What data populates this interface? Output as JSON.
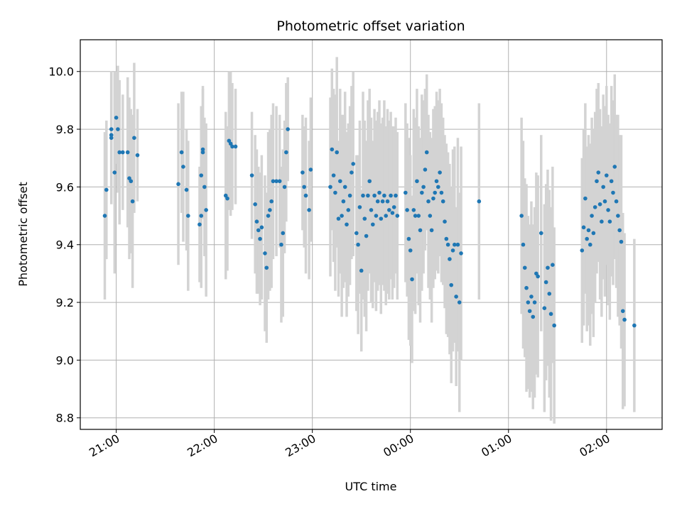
{
  "chart_data": {
    "type": "scatter",
    "title": "Photometric offset variation",
    "xlabel": "UTC time",
    "ylabel": "Photometric offset",
    "xlim": [
      "20:38",
      "26:34"
    ],
    "ylim": [
      8.76,
      10.11
    ],
    "x_ticks": [
      "21:00",
      "22:00",
      "23:00",
      "00:00",
      "01:00",
      "02:00"
    ],
    "y_ticks": [
      "8.8",
      "9.0",
      "9.2",
      "9.4",
      "9.6",
      "9.8",
      "10.0"
    ],
    "grid": true,
    "colors": {
      "points": "#1f77b4",
      "error_bars": "#d3d3d3",
      "grid": "#b0b0b0"
    },
    "series": [
      {
        "error_bars": "sd",
        "points": [
          {
            "x": "20:53",
            "y": 9.5,
            "err": 0.29
          },
          {
            "x": "20:54",
            "y": 9.59,
            "err": 0.24
          },
          {
            "x": "20:57",
            "y": 9.8,
            "err": 0.2
          },
          {
            "x": "20:57",
            "y": 9.78,
            "err": 0.22
          },
          {
            "x": "20:57",
            "y": 9.77,
            "err": 0.23
          },
          {
            "x": "20:59",
            "y": 9.65,
            "err": 0.35
          },
          {
            "x": "21:00",
            "y": 9.84,
            "err": 0.16
          },
          {
            "x": "21:01",
            "y": 9.8,
            "err": 0.22
          },
          {
            "x": "21:02",
            "y": 9.72,
            "err": 0.25
          },
          {
            "x": "21:04",
            "y": 9.72,
            "err": 0.2
          },
          {
            "x": "21:07",
            "y": 9.72,
            "err": 0.26
          },
          {
            "x": "21:08",
            "y": 9.63,
            "err": 0.28
          },
          {
            "x": "21:09",
            "y": 9.62,
            "err": 0.25
          },
          {
            "x": "21:10",
            "y": 9.55,
            "err": 0.3
          },
          {
            "x": "21:11",
            "y": 9.77,
            "err": 0.26
          },
          {
            "x": "21:13",
            "y": 9.71,
            "err": 0.16
          },
          {
            "x": "21:38",
            "y": 9.61,
            "err": 0.28
          },
          {
            "x": "21:40",
            "y": 9.72,
            "err": 0.21
          },
          {
            "x": "21:41",
            "y": 9.67,
            "err": 0.26
          },
          {
            "x": "21:43",
            "y": 9.59,
            "err": 0.21
          },
          {
            "x": "21:44",
            "y": 9.5,
            "err": 0.26
          },
          {
            "x": "21:51",
            "y": 9.47,
            "err": 0.2
          },
          {
            "x": "21:52",
            "y": 9.5,
            "err": 0.25
          },
          {
            "x": "21:52",
            "y": 9.64,
            "err": 0.24
          },
          {
            "x": "21:53",
            "y": 9.73,
            "err": 0.21
          },
          {
            "x": "21:53",
            "y": 9.72,
            "err": 0.23
          },
          {
            "x": "21:54",
            "y": 9.6,
            "err": 0.24
          },
          {
            "x": "21:55",
            "y": 9.52,
            "err": 0.3
          },
          {
            "x": "22:07",
            "y": 9.57,
            "err": 0.29
          },
          {
            "x": "22:08",
            "y": 9.56,
            "err": 0.25
          },
          {
            "x": "22:09",
            "y": 9.76,
            "err": 0.24
          },
          {
            "x": "22:10",
            "y": 9.75,
            "err": 0.25
          },
          {
            "x": "22:11",
            "y": 9.74,
            "err": 0.22
          },
          {
            "x": "22:13",
            "y": 9.74,
            "err": 0.2
          },
          {
            "x": "22:23",
            "y": 9.64,
            "err": 0.22
          },
          {
            "x": "22:25",
            "y": 9.54,
            "err": 0.24
          },
          {
            "x": "22:26",
            "y": 9.48,
            "err": 0.25
          },
          {
            "x": "22:27",
            "y": 9.45,
            "err": 0.22
          },
          {
            "x": "22:28",
            "y": 9.42,
            "err": 0.23
          },
          {
            "x": "22:29",
            "y": 9.46,
            "err": 0.25
          },
          {
            "x": "22:31",
            "y": 9.37,
            "err": 0.27
          },
          {
            "x": "22:32",
            "y": 9.32,
            "err": 0.26
          },
          {
            "x": "22:33",
            "y": 9.5,
            "err": 0.29
          },
          {
            "x": "22:34",
            "y": 9.52,
            "err": 0.28
          },
          {
            "x": "22:35",
            "y": 9.55,
            "err": 0.3
          },
          {
            "x": "22:36",
            "y": 9.62,
            "err": 0.27
          },
          {
            "x": "22:38",
            "y": 9.62,
            "err": 0.26
          },
          {
            "x": "22:40",
            "y": 9.62,
            "err": 0.23
          },
          {
            "x": "22:41",
            "y": 9.4,
            "err": 0.27
          },
          {
            "x": "22:42",
            "y": 9.44,
            "err": 0.29
          },
          {
            "x": "22:43",
            "y": 9.6,
            "err": 0.23
          },
          {
            "x": "22:44",
            "y": 9.72,
            "err": 0.24
          },
          {
            "x": "22:45",
            "y": 9.8,
            "err": 0.18
          },
          {
            "x": "22:54",
            "y": 9.65,
            "err": 0.2
          },
          {
            "x": "22:55",
            "y": 9.6,
            "err": 0.21
          },
          {
            "x": "22:56",
            "y": 9.57,
            "err": 0.27
          },
          {
            "x": "22:58",
            "y": 9.52,
            "err": 0.24
          },
          {
            "x": "22:59",
            "y": 9.66,
            "err": 0.25
          },
          {
            "x": "23:11",
            "y": 9.6,
            "err": 0.31
          },
          {
            "x": "23:12",
            "y": 9.73,
            "err": 0.28
          },
          {
            "x": "23:13",
            "y": 9.64,
            "err": 0.3
          },
          {
            "x": "23:14",
            "y": 9.58,
            "err": 0.34
          },
          {
            "x": "23:15",
            "y": 9.72,
            "err": 0.33
          },
          {
            "x": "23:16",
            "y": 9.49,
            "err": 0.27
          },
          {
            "x": "23:17",
            "y": 9.62,
            "err": 0.32
          },
          {
            "x": "23:18",
            "y": 9.5,
            "err": 0.35
          },
          {
            "x": "23:19",
            "y": 9.55,
            "err": 0.3
          },
          {
            "x": "23:20",
            "y": 9.6,
            "err": 0.33
          },
          {
            "x": "23:21",
            "y": 9.47,
            "err": 0.32
          },
          {
            "x": "23:22",
            "y": 9.52,
            "err": 0.3
          },
          {
            "x": "23:23",
            "y": 9.57,
            "err": 0.31
          },
          {
            "x": "23:24",
            "y": 9.65,
            "err": 0.3
          },
          {
            "x": "23:25",
            "y": 9.68,
            "err": 0.32
          },
          {
            "x": "23:27",
            "y": 9.44,
            "err": 0.27
          },
          {
            "x": "23:28",
            "y": 9.4,
            "err": 0.31
          },
          {
            "x": "23:29",
            "y": 9.53,
            "err": 0.3
          },
          {
            "x": "23:30",
            "y": 9.31,
            "err": 0.28
          },
          {
            "x": "23:31",
            "y": 9.57,
            "err": 0.36
          },
          {
            "x": "23:32",
            "y": 9.49,
            "err": 0.34
          },
          {
            "x": "23:33",
            "y": 9.43,
            "err": 0.33
          },
          {
            "x": "23:34",
            "y": 9.57,
            "err": 0.33
          },
          {
            "x": "23:35",
            "y": 9.62,
            "err": 0.32
          },
          {
            "x": "23:36",
            "y": 9.52,
            "err": 0.32
          },
          {
            "x": "23:37",
            "y": 9.47,
            "err": 0.29
          },
          {
            "x": "23:38",
            "y": 9.57,
            "err": 0.3
          },
          {
            "x": "23:39",
            "y": 9.5,
            "err": 0.33
          },
          {
            "x": "23:40",
            "y": 9.55,
            "err": 0.31
          },
          {
            "x": "23:41",
            "y": 9.58,
            "err": 0.32
          },
          {
            "x": "23:42",
            "y": 9.49,
            "err": 0.33
          },
          {
            "x": "23:43",
            "y": 9.55,
            "err": 0.29
          },
          {
            "x": "23:44",
            "y": 9.57,
            "err": 0.33
          },
          {
            "x": "23:45",
            "y": 9.5,
            "err": 0.31
          },
          {
            "x": "23:46",
            "y": 9.55,
            "err": 0.32
          },
          {
            "x": "23:47",
            "y": 9.52,
            "err": 0.31
          },
          {
            "x": "23:48",
            "y": 9.57,
            "err": 0.29
          },
          {
            "x": "23:49",
            "y": 9.51,
            "err": 0.3
          },
          {
            "x": "23:50",
            "y": 9.53,
            "err": 0.28
          },
          {
            "x": "23:51",
            "y": 9.57,
            "err": 0.27
          },
          {
            "x": "23:52",
            "y": 9.5,
            "err": 0.29
          },
          {
            "x": "23:57",
            "y": 9.58,
            "err": 0.31
          },
          {
            "x": "23:58",
            "y": 9.52,
            "err": 0.3
          },
          {
            "x": "23:59",
            "y": 9.42,
            "err": 0.35
          },
          {
            "x": "24:00",
            "y": 9.38,
            "err": 0.33
          },
          {
            "x": "24:01",
            "y": 9.28,
            "err": 0.29
          },
          {
            "x": "24:02",
            "y": 9.52,
            "err": 0.35
          },
          {
            "x": "24:03",
            "y": 9.5,
            "err": 0.34
          },
          {
            "x": "24:04",
            "y": 9.62,
            "err": 0.32
          },
          {
            "x": "24:05",
            "y": 9.5,
            "err": 0.31
          },
          {
            "x": "24:06",
            "y": 9.45,
            "err": 0.32
          },
          {
            "x": "24:07",
            "y": 9.58,
            "err": 0.34
          },
          {
            "x": "24:08",
            "y": 9.6,
            "err": 0.3
          },
          {
            "x": "24:09",
            "y": 9.66,
            "err": 0.28
          },
          {
            "x": "24:10",
            "y": 9.72,
            "err": 0.27
          },
          {
            "x": "24:11",
            "y": 9.55,
            "err": 0.3
          },
          {
            "x": "24:12",
            "y": 9.5,
            "err": 0.29
          },
          {
            "x": "24:13",
            "y": 9.45,
            "err": 0.32
          },
          {
            "x": "24:14",
            "y": 9.56,
            "err": 0.31
          },
          {
            "x": "24:15",
            "y": 9.58,
            "err": 0.3
          },
          {
            "x": "24:16",
            "y": 9.62,
            "err": 0.31
          },
          {
            "x": "24:17",
            "y": 9.6,
            "err": 0.3
          },
          {
            "x": "24:18",
            "y": 9.65,
            "err": 0.29
          },
          {
            "x": "24:19",
            "y": 9.58,
            "err": 0.31
          },
          {
            "x": "24:20",
            "y": 9.55,
            "err": 0.29
          },
          {
            "x": "24:21",
            "y": 9.48,
            "err": 0.3
          },
          {
            "x": "24:22",
            "y": 9.42,
            "err": 0.33
          },
          {
            "x": "24:23",
            "y": 9.4,
            "err": 0.32
          },
          {
            "x": "24:24",
            "y": 9.35,
            "err": 0.33
          },
          {
            "x": "24:25",
            "y": 9.26,
            "err": 0.34
          },
          {
            "x": "24:26",
            "y": 9.38,
            "err": 0.35
          },
          {
            "x": "24:27",
            "y": 9.4,
            "err": 0.34
          },
          {
            "x": "24:28",
            "y": 9.22,
            "err": 0.31
          },
          {
            "x": "24:29",
            "y": 9.4,
            "err": 0.37
          },
          {
            "x": "24:30",
            "y": 9.2,
            "err": 0.38
          },
          {
            "x": "24:31",
            "y": 9.37,
            "err": 0.37
          },
          {
            "x": "24:42",
            "y": 9.55,
            "err": 0.34
          },
          {
            "x": "25:08",
            "y": 9.5,
            "err": 0.34
          },
          {
            "x": "25:09",
            "y": 9.4,
            "err": 0.36
          },
          {
            "x": "25:10",
            "y": 9.32,
            "err": 0.31
          },
          {
            "x": "25:11",
            "y": 9.25,
            "err": 0.36
          },
          {
            "x": "25:12",
            "y": 9.2,
            "err": 0.3
          },
          {
            "x": "25:13",
            "y": 9.17,
            "err": 0.3
          },
          {
            "x": "25:14",
            "y": 9.22,
            "err": 0.33
          },
          {
            "x": "25:15",
            "y": 9.15,
            "err": 0.32
          },
          {
            "x": "25:16",
            "y": 9.2,
            "err": 0.33
          },
          {
            "x": "25:17",
            "y": 9.3,
            "err": 0.35
          },
          {
            "x": "25:18",
            "y": 9.29,
            "err": 0.35
          },
          {
            "x": "25:20",
            "y": 9.44,
            "err": 0.34
          },
          {
            "x": "25:22",
            "y": 9.18,
            "err": 0.36
          },
          {
            "x": "25:23",
            "y": 9.27,
            "err": 0.34
          },
          {
            "x": "25:24",
            "y": 9.32,
            "err": 0.34
          },
          {
            "x": "25:25",
            "y": 9.23,
            "err": 0.36
          },
          {
            "x": "25:26",
            "y": 9.16,
            "err": 0.37
          },
          {
            "x": "25:27",
            "y": 9.33,
            "err": 0.34
          },
          {
            "x": "25:28",
            "y": 9.12,
            "err": 0.34
          },
          {
            "x": "25:45",
            "y": 9.38,
            "err": 0.32
          },
          {
            "x": "25:46",
            "y": 9.46,
            "err": 0.34
          },
          {
            "x": "25:47",
            "y": 9.56,
            "err": 0.33
          },
          {
            "x": "25:48",
            "y": 9.42,
            "err": 0.32
          },
          {
            "x": "25:49",
            "y": 9.45,
            "err": 0.33
          },
          {
            "x": "25:50",
            "y": 9.4,
            "err": 0.35
          },
          {
            "x": "25:51",
            "y": 9.5,
            "err": 0.34
          },
          {
            "x": "25:52",
            "y": 9.44,
            "err": 0.36
          },
          {
            "x": "25:53",
            "y": 9.53,
            "err": 0.33
          },
          {
            "x": "25:54",
            "y": 9.62,
            "err": 0.32
          },
          {
            "x": "25:55",
            "y": 9.65,
            "err": 0.31
          },
          {
            "x": "25:56",
            "y": 9.54,
            "err": 0.33
          },
          {
            "x": "25:57",
            "y": 9.48,
            "err": 0.33
          },
          {
            "x": "25:58",
            "y": 9.6,
            "err": 0.32
          },
          {
            "x": "25:59",
            "y": 9.55,
            "err": 0.33
          },
          {
            "x": "26:00",
            "y": 9.64,
            "err": 0.31
          },
          {
            "x": "26:01",
            "y": 9.52,
            "err": 0.33
          },
          {
            "x": "26:02",
            "y": 9.48,
            "err": 0.34
          },
          {
            "x": "26:03",
            "y": 9.62,
            "err": 0.33
          },
          {
            "x": "26:04",
            "y": 9.58,
            "err": 0.32
          },
          {
            "x": "26:05",
            "y": 9.67,
            "err": 0.32
          },
          {
            "x": "26:06",
            "y": 9.55,
            "err": 0.3
          },
          {
            "x": "26:07",
            "y": 9.5,
            "err": 0.35
          },
          {
            "x": "26:08",
            "y": 9.45,
            "err": 0.33
          },
          {
            "x": "26:09",
            "y": 9.41,
            "err": 0.37
          },
          {
            "x": "26:10",
            "y": 9.17,
            "err": 0.34
          },
          {
            "x": "26:11",
            "y": 9.14,
            "err": 0.3
          },
          {
            "x": "26:17",
            "y": 9.12,
            "err": 0.3
          }
        ]
      }
    ]
  }
}
